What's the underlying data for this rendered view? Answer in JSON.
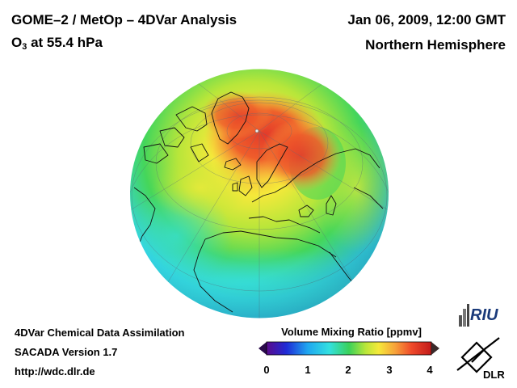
{
  "header": {
    "title": "GOME–2 / MetOp – 4DVar Analysis",
    "species": "O",
    "species_sub": "3",
    "level": " at 55.4 hPa",
    "datetime": "Jan 06, 2009, 12:00 GMT",
    "region": "Northern Hemisphere"
  },
  "footer": {
    "line1": "4DVar Chemical Data Assimilation",
    "line2": "SACADA Version 1.7",
    "line3": "http://wdc.dlr.de"
  },
  "colorbar": {
    "title": "Volume Mixing Ratio [ppmv]",
    "ticks": [
      "0",
      "1",
      "2",
      "3",
      "4"
    ],
    "range": [
      0,
      4
    ],
    "colors": [
      "#5a0a8c",
      "#1f2bd6",
      "#1fa7f0",
      "#33e0e0",
      "#3ad15a",
      "#b8e63a",
      "#f5e93a",
      "#f7a23a",
      "#ef4a2a",
      "#c21a1a"
    ]
  },
  "logos": {
    "riu": "RIU",
    "dlr": "DLR"
  },
  "map": {
    "colors": {
      "ocean_band": "#33d3e6",
      "mid": "#45d65a",
      "high": "#ef5a2a",
      "peak": "#e33a2a",
      "yellow": "#d8e63a",
      "coast": "#111111"
    }
  }
}
